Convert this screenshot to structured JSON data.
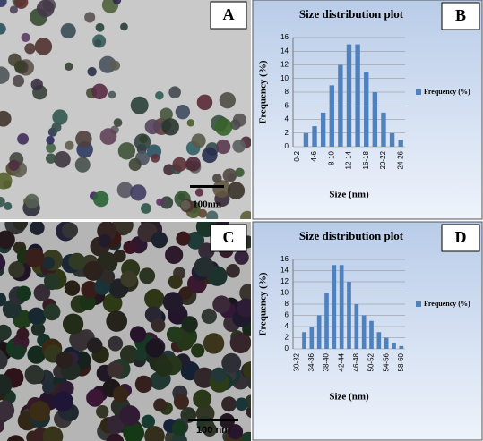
{
  "images": [
    {
      "label": "A",
      "scale_bar": "100nm"
    },
    {
      "label": "C",
      "scale_bar": "100 nm"
    }
  ],
  "chart_data": [
    {
      "type": "bar",
      "panel_label": "B",
      "title": "Size distribution plot",
      "x_label": "Size (nm)",
      "y_label": "Frequency (%)",
      "categories": [
        "0-2",
        null,
        "4-6",
        null,
        "8-10",
        null,
        "12-14",
        null,
        "16-18",
        null,
        "20-22",
        null,
        "24-26"
      ],
      "series": [
        {
          "name": "Frequency (%)",
          "color": "#4f81bd",
          "values": [
            0,
            2,
            3,
            5,
            9,
            12,
            15,
            15,
            11,
            8,
            5,
            2,
            1
          ]
        }
      ],
      "ylim": [
        0,
        16
      ],
      "yticks": [
        0,
        2,
        4,
        6,
        8,
        10,
        12,
        14,
        16
      ],
      "grid": true,
      "legend": "right"
    },
    {
      "type": "bar",
      "panel_label": "D",
      "title": "Size distribution plot",
      "x_label": "Size (nm)",
      "y_label": "Frequency (%)",
      "categories": [
        "30-32",
        null,
        "34-36",
        null,
        "38-40",
        null,
        "42-44",
        null,
        "46-48",
        null,
        "50-52",
        null,
        "54-56",
        null,
        "58-60"
      ],
      "series": [
        {
          "name": "Frequency (%)",
          "color": "#4f81bd",
          "values": [
            0,
            3,
            4,
            6,
            10,
            15,
            15,
            12,
            8,
            6,
            5,
            3,
            2,
            1,
            0.5
          ]
        }
      ],
      "ylim": [
        0,
        16
      ],
      "yticks": [
        0,
        2,
        4,
        6,
        8,
        10,
        12,
        14,
        16
      ],
      "grid": true,
      "legend": "right"
    }
  ]
}
